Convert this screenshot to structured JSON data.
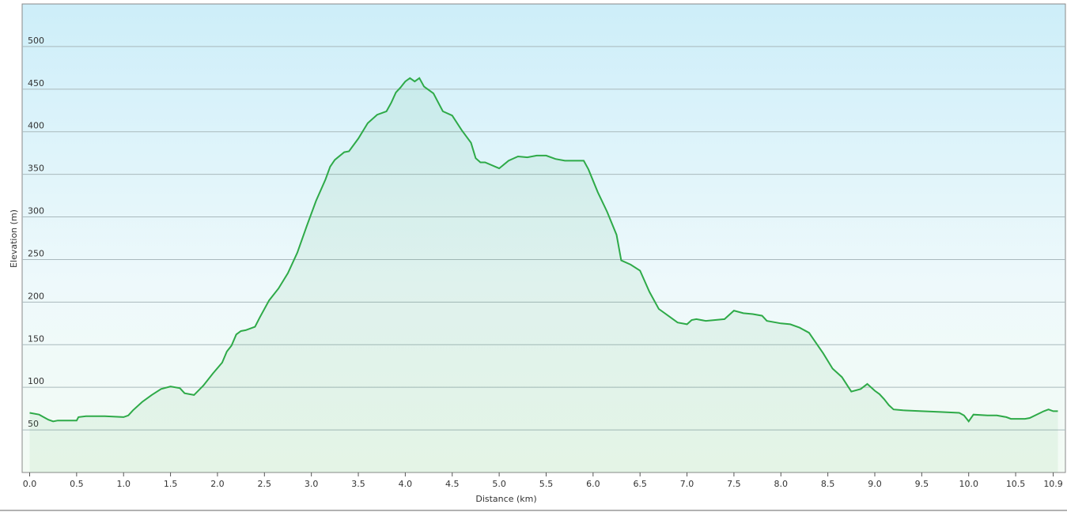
{
  "chart_data": {
    "type": "area",
    "x_label": "Distance  (km)",
    "y_label": "Elevation (m)",
    "x": [
      0,
      0.1,
      0.2,
      0.25,
      0.3,
      0.4,
      0.5,
      0.52,
      0.6,
      0.8,
      1.0,
      1.05,
      1.1,
      1.2,
      1.3,
      1.4,
      1.5,
      1.6,
      1.65,
      1.75,
      1.85,
      1.95,
      2.05,
      2.1,
      2.15,
      2.2,
      2.25,
      2.3,
      2.4,
      2.45,
      2.55,
      2.65,
      2.75,
      2.85,
      2.95,
      3.05,
      3.15,
      3.2,
      3.25,
      3.35,
      3.4,
      3.5,
      3.6,
      3.7,
      3.8,
      3.85,
      3.9,
      3.95,
      4.0,
      4.05,
      4.1,
      4.15,
      4.2,
      4.3,
      4.4,
      4.5,
      4.6,
      4.7,
      4.75,
      4.8,
      4.85,
      5.0,
      5.1,
      5.2,
      5.3,
      5.4,
      5.5,
      5.6,
      5.7,
      5.8,
      5.9,
      5.95,
      6.05,
      6.15,
      6.25,
      6.3,
      6.4,
      6.5,
      6.6,
      6.7,
      6.8,
      6.9,
      7.0,
      7.05,
      7.1,
      7.2,
      7.3,
      7.4,
      7.5,
      7.6,
      7.7,
      7.8,
      7.85,
      8.0,
      8.1,
      8.2,
      8.3,
      8.35,
      8.45,
      8.55,
      8.65,
      8.75,
      8.85,
      8.92,
      9.0,
      9.05,
      9.1,
      9.15,
      9.2,
      9.3,
      9.5,
      9.7,
      9.9,
      9.95,
      10.0,
      10.05,
      10.2,
      10.3,
      10.4,
      10.45,
      10.6,
      10.65,
      10.8,
      10.85,
      10.9,
      10.95
    ],
    "values": [
      70,
      68,
      62,
      60,
      61,
      61,
      61,
      65,
      66,
      66,
      65,
      67,
      73,
      83,
      91,
      98,
      101,
      99,
      93,
      91,
      102,
      116,
      129,
      142,
      149,
      162,
      166,
      167,
      171,
      182,
      202,
      216,
      234,
      258,
      289,
      319,
      344,
      359,
      367,
      376,
      377,
      392,
      410,
      420,
      424,
      434,
      446,
      452,
      459,
      463,
      459,
      463,
      453,
      445,
      424,
      419,
      402,
      387,
      369,
      364,
      364,
      357,
      366,
      371,
      370,
      372,
      372,
      368,
      366,
      366,
      366,
      356,
      329,
      306,
      279,
      249,
      244,
      237,
      212,
      192,
      184,
      176,
      174,
      179,
      180,
      178,
      179,
      180,
      190,
      187,
      186,
      184,
      178,
      175,
      174,
      170,
      164,
      156,
      140,
      122,
      112,
      95,
      98,
      104,
      96,
      92,
      86,
      79,
      74,
      73,
      72,
      71,
      70,
      67,
      60,
      68,
      67,
      67,
      65,
      63,
      63,
      64,
      72,
      74,
      72,
      72
    ],
    "color": "#2eaa48",
    "xlim": [
      -0.08,
      11.03
    ],
    "ylim": [
      0,
      550
    ],
    "xticks": [
      {
        "value": 0,
        "label": "0.0"
      },
      0.5,
      {
        "value": 1,
        "label": "1.0"
      },
      1.5,
      {
        "value": 2,
        "label": "2.0"
      },
      2.5,
      {
        "value": 3,
        "label": "3.0"
      },
      3.5,
      {
        "value": 4,
        "label": "4.0"
      },
      4.5,
      {
        "value": 5,
        "label": "5.0"
      },
      5.5,
      {
        "value": 6,
        "label": "6.0"
      },
      6.5,
      {
        "value": 7,
        "label": "7.0"
      },
      7.5,
      {
        "value": 8,
        "label": "8.0"
      },
      8.5,
      {
        "value": 9,
        "label": "9.0"
      },
      9.5,
      {
        "value": 10,
        "label": "10.0"
      },
      10.5,
      10.9
    ],
    "yticks": [
      50,
      100,
      150,
      200,
      250,
      300,
      350,
      400,
      450,
      500
    ],
    "grid": true
  }
}
